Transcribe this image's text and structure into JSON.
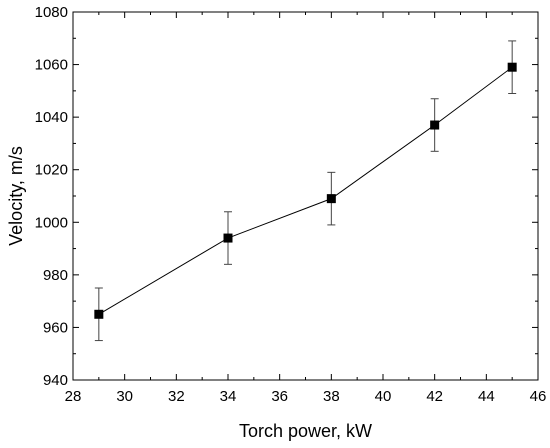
{
  "chart_data": {
    "type": "line",
    "title": "",
    "xlabel": "Torch power, kW",
    "ylabel": "Velocity, m/s",
    "xlim": [
      28,
      46
    ],
    "ylim": [
      940,
      1080
    ],
    "xticks": [
      28,
      30,
      32,
      34,
      36,
      38,
      40,
      42,
      44,
      46
    ],
    "yticks": [
      940,
      960,
      980,
      1000,
      1020,
      1040,
      1060,
      1080
    ],
    "grid": false,
    "marker": "square",
    "color": "#000000",
    "series": [
      {
        "x": [
          29,
          34,
          38,
          42,
          45
        ],
        "y": [
          965,
          994,
          1009,
          1037,
          1059
        ],
        "error": [
          10,
          10,
          10,
          10,
          10
        ]
      }
    ]
  }
}
